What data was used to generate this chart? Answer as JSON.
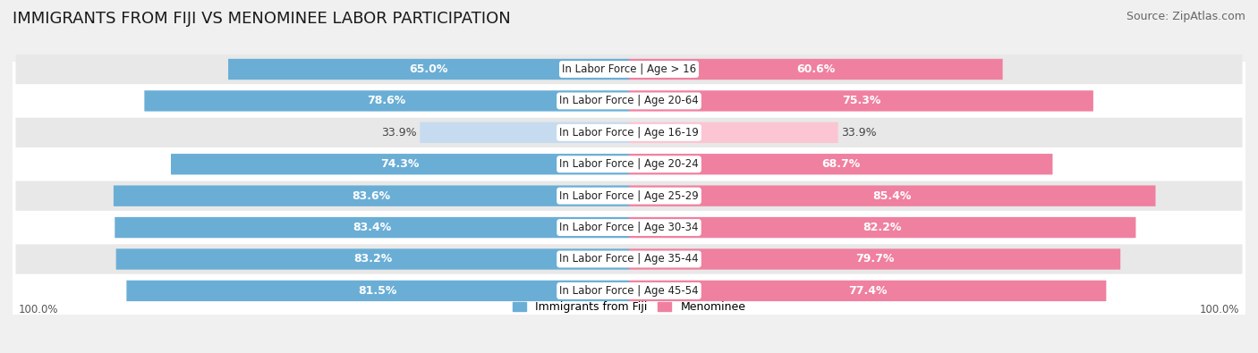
{
  "title": "IMMIGRANTS FROM FIJI VS MENOMINEE LABOR PARTICIPATION",
  "source": "Source: ZipAtlas.com",
  "categories": [
    "In Labor Force | Age > 16",
    "In Labor Force | Age 20-64",
    "In Labor Force | Age 16-19",
    "In Labor Force | Age 20-24",
    "In Labor Force | Age 25-29",
    "In Labor Force | Age 30-34",
    "In Labor Force | Age 35-44",
    "In Labor Force | Age 45-54"
  ],
  "fiji_values": [
    65.0,
    78.6,
    33.9,
    74.3,
    83.6,
    83.4,
    83.2,
    81.5
  ],
  "menominee_values": [
    60.6,
    75.3,
    33.9,
    68.7,
    85.4,
    82.2,
    79.7,
    77.4
  ],
  "fiji_color": "#6aaed6",
  "fiji_color_light": "#c6dbef",
  "menominee_color": "#f080a0",
  "menominee_color_light": "#fcc5d4",
  "background_color": "#f0f0f0",
  "row_even_color": "#ffffff",
  "row_odd_color": "#e8e8e8",
  "label_white": "#ffffff",
  "label_dark": "#444444",
  "legend_fiji": "Immigrants from Fiji",
  "legend_menominee": "Menominee",
  "axis_label": "100.0%",
  "max_value": 100.0,
  "title_fontsize": 13,
  "source_fontsize": 9,
  "bar_label_fontsize": 9,
  "category_fontsize": 8.5,
  "legend_fontsize": 9,
  "center_label_bg": "#ffffff"
}
